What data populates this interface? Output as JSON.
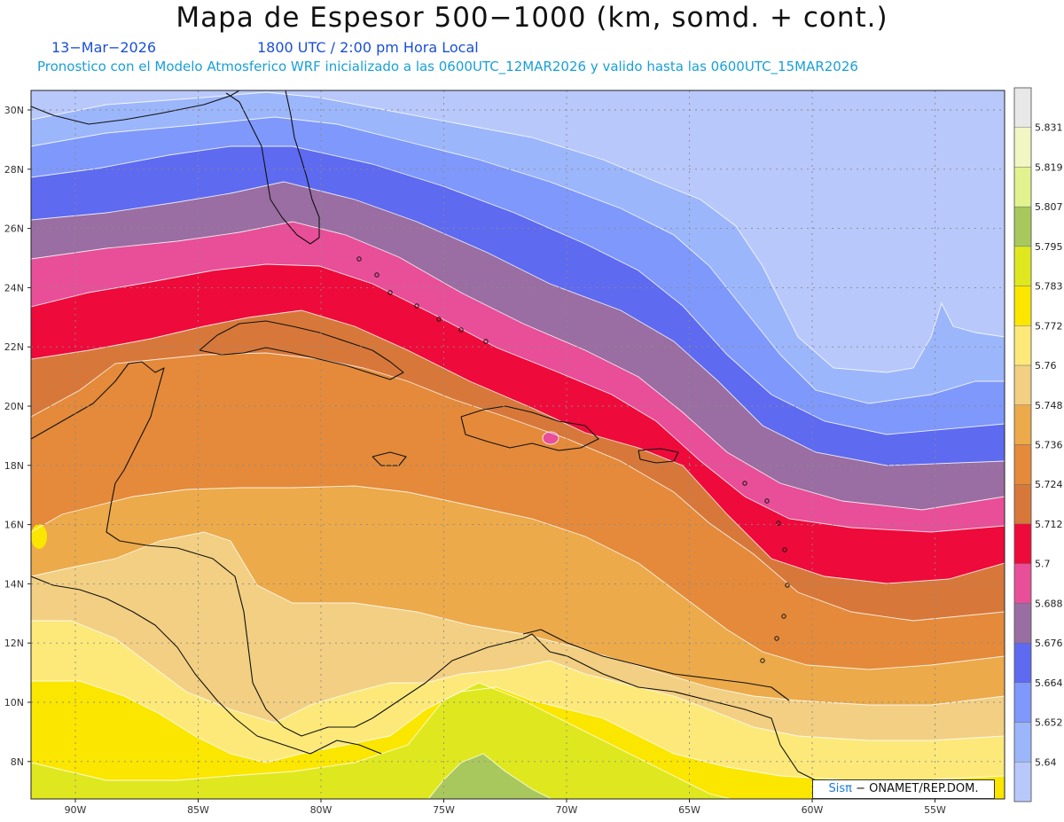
{
  "header": {
    "title": "Mapa de Espesor 500−1000 (km, somd. + cont.)",
    "date": "13−Mar−2026",
    "time": "1800 UTC / 2:00 pm Hora Local",
    "model_info": "Pronostico con el Modelo Atmosferico WRF inicializado a las 0600UTC_12MAR2026 y valido hasta las  0600UTC_15MAR2026"
  },
  "axes": {
    "lat_labels": [
      "30N",
      "28N",
      "26N",
      "24N",
      "22N",
      "20N",
      "18N",
      "16N",
      "14N",
      "12N",
      "10N",
      "8N"
    ],
    "lon_labels": [
      "90W",
      "85W",
      "80W",
      "75W",
      "70W",
      "65W",
      "60W",
      "55W"
    ]
  },
  "colorbar": {
    "levels": [
      "5.831",
      "5.819",
      "5.807",
      "5.795",
      "5.783",
      "5.772",
      "5.76",
      "5.748",
      "5.736",
      "5.724",
      "5.712",
      "5.7",
      "5.688",
      "5.676",
      "5.664",
      "5.652",
      "5.64"
    ],
    "colors": [
      "#e8e8e8",
      "#f0f6c4",
      "#e2f28e",
      "#a8c85e",
      "#dfe81e",
      "#fbe600",
      "#fde97a",
      "#f2cf82",
      "#ecaa4a",
      "#e48a3a",
      "#d7783a",
      "#ee0a3a",
      "#e84f98",
      "#9a6ea2",
      "#5e6af0",
      "#7f98fb",
      "#9cb6fb",
      "#b8c8fb"
    ]
  },
  "map": {
    "lat_range": [
      7,
      30.6
    ],
    "lon_range": [
      -91.8,
      -51.8
    ],
    "gridlines": true
  },
  "credit": {
    "sis": "Sisπ",
    "rest": " − ONAMET/REP.DOM."
  }
}
